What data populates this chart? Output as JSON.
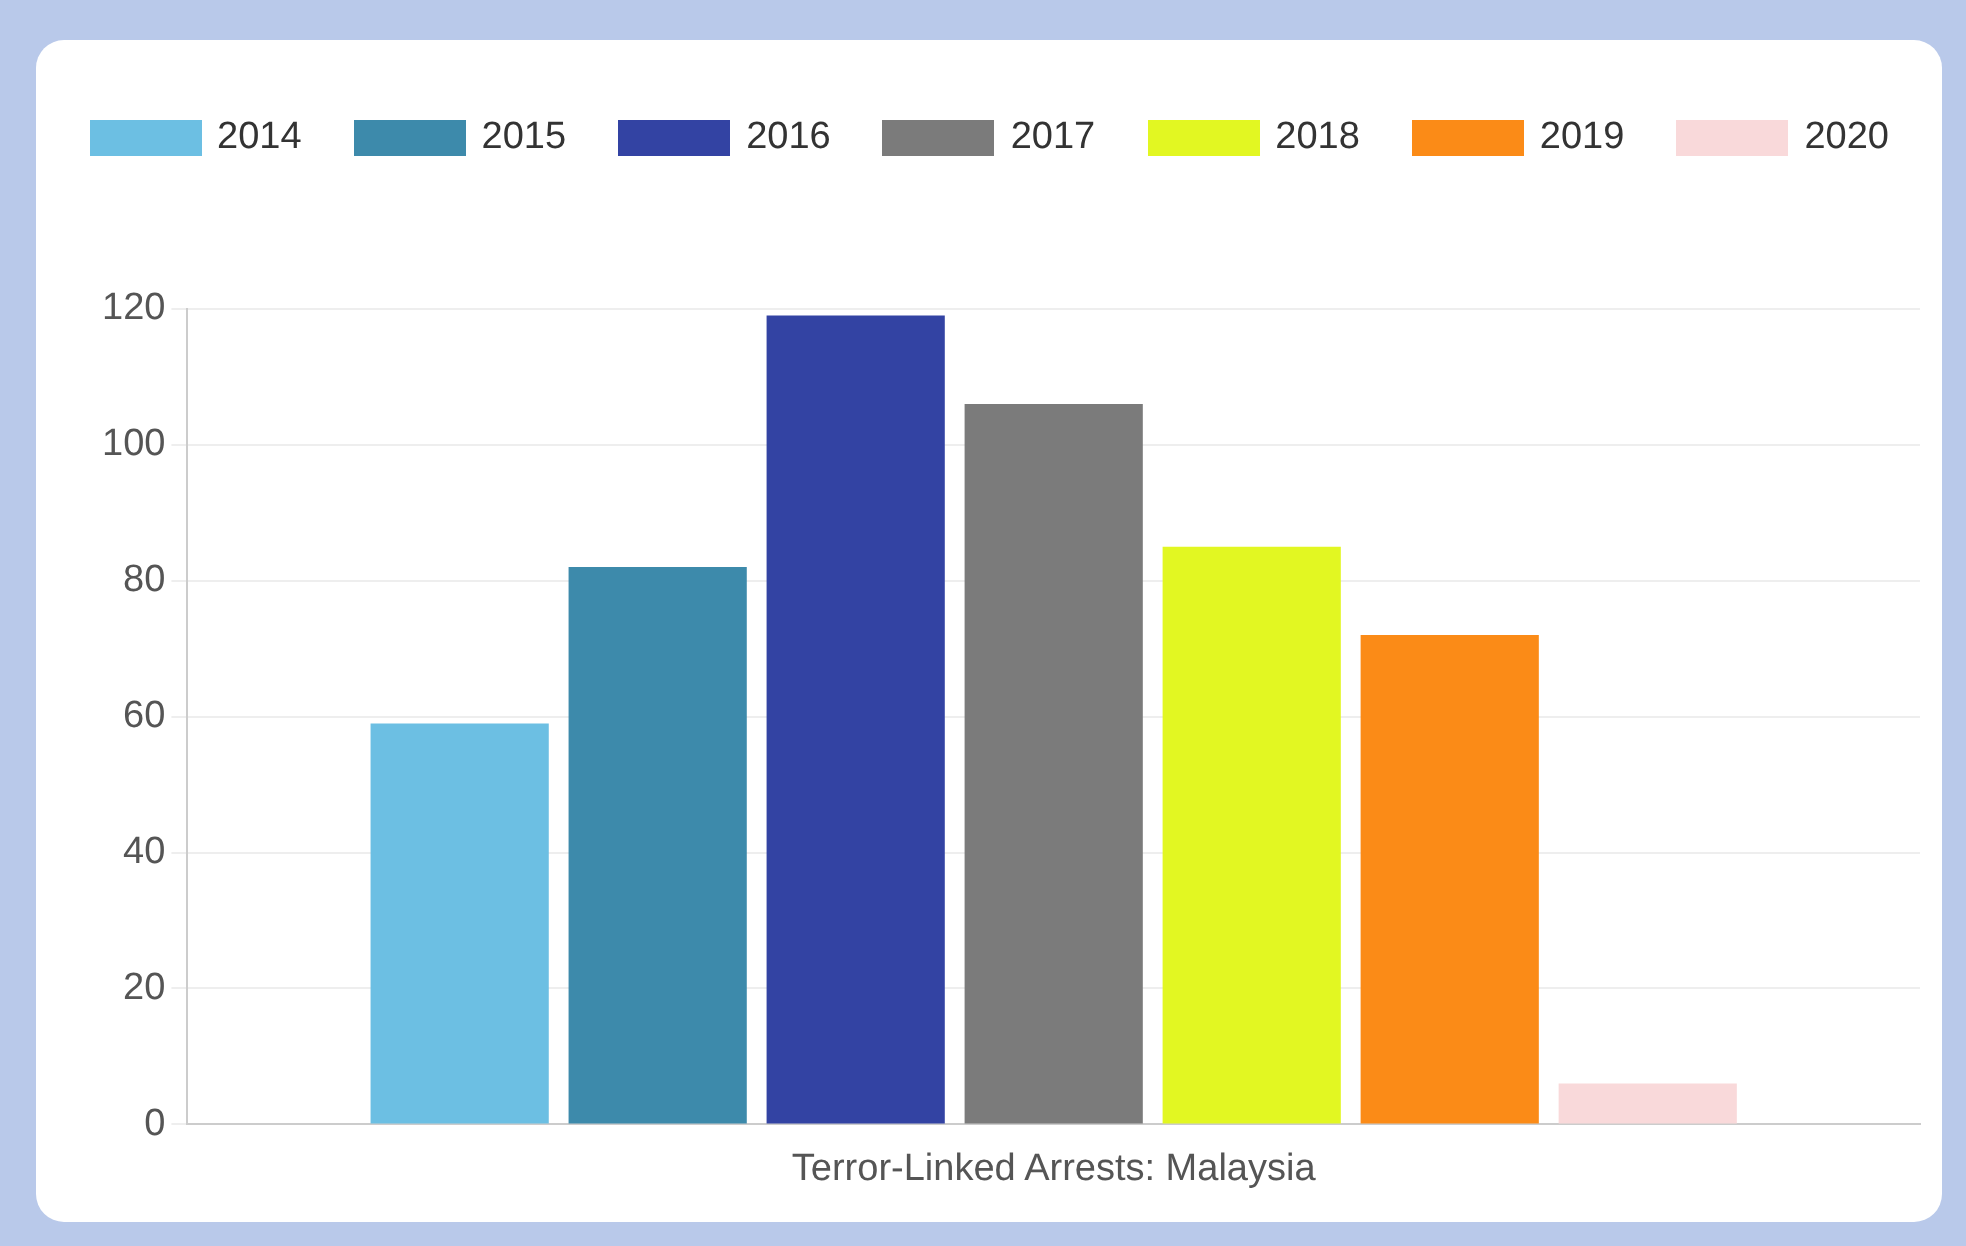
{
  "chart_data": {
    "type": "bar",
    "categories": [
      "Terror-Linked Arrests: Malaysia"
    ],
    "series": [
      {
        "name": "2014",
        "color": "#6cbfe3",
        "values": [
          59
        ]
      },
      {
        "name": "2015",
        "color": "#3d8aab",
        "values": [
          82
        ]
      },
      {
        "name": "2016",
        "color": "#3343a3",
        "values": [
          119
        ]
      },
      {
        "name": "2017",
        "color": "#7b7b7b",
        "values": [
          106
        ]
      },
      {
        "name": "2018",
        "color": "#e2f722",
        "values": [
          85
        ]
      },
      {
        "name": "2019",
        "color": "#fb8b17",
        "values": [
          72
        ]
      },
      {
        "name": "2020",
        "color": "#f9d9da",
        "values": [
          6
        ]
      }
    ],
    "ylim": [
      0,
      120
    ],
    "yticks": [
      0,
      20,
      40,
      60,
      80,
      100,
      120
    ],
    "grid": "y",
    "legend": "top"
  }
}
